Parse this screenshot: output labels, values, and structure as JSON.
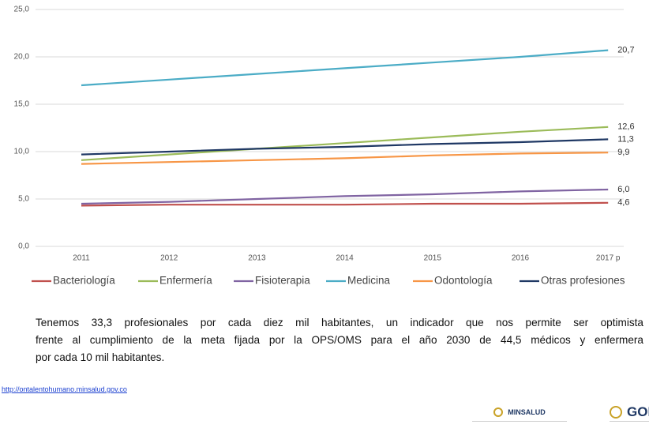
{
  "chart_data": {
    "type": "line",
    "categories": [
      "2011",
      "2012",
      "2013",
      "2014",
      "2015",
      "2016",
      "2017 p"
    ],
    "series": [
      {
        "name": "Bacteriología",
        "color": "#c0504d",
        "values": [
          4.3,
          4.4,
          4.4,
          4.4,
          4.5,
          4.5,
          4.6
        ],
        "value_labels": [
          null,
          null,
          null,
          null,
          null,
          null,
          "4,6"
        ]
      },
      {
        "name": "Enfermería",
        "color": "#9bbb59",
        "values": [
          9.1,
          9.7,
          10.3,
          10.9,
          11.5,
          12.1,
          12.6
        ],
        "value_labels": [
          null,
          null,
          null,
          null,
          null,
          null,
          "12,6"
        ]
      },
      {
        "name": "Fisioterapia",
        "color": "#8064a2",
        "values": [
          4.5,
          4.7,
          5.0,
          5.3,
          5.5,
          5.8,
          6.0
        ],
        "value_labels": [
          null,
          null,
          null,
          null,
          null,
          null,
          "6,0"
        ]
      },
      {
        "name": "Medicina",
        "color": "#4bacc6",
        "values": [
          17.0,
          17.6,
          18.2,
          18.8,
          19.4,
          20.0,
          20.7
        ],
        "value_labels": [
          null,
          null,
          null,
          null,
          null,
          null,
          "20,7"
        ]
      },
      {
        "name": "Odontología",
        "color": "#f79646",
        "values": [
          8.7,
          8.9,
          9.1,
          9.3,
          9.6,
          9.8,
          9.9
        ],
        "value_labels": [
          null,
          null,
          null,
          null,
          null,
          null,
          "9,9"
        ]
      },
      {
        "name": "Otras profesiones",
        "color": "#1f3864",
        "values": [
          9.7,
          10.0,
          10.3,
          10.5,
          10.8,
          11.0,
          11.3
        ],
        "value_labels": [
          null,
          null,
          null,
          null,
          null,
          null,
          "11,3"
        ]
      }
    ],
    "ylim": [
      0,
      25
    ],
    "yticks": [
      {
        "value": 0,
        "label": "0,0"
      },
      {
        "value": 5,
        "label": "5,0"
      },
      {
        "value": 10,
        "label": "10,0"
      },
      {
        "value": 15,
        "label": "15,0"
      },
      {
        "value": 20,
        "label": "20,0"
      },
      {
        "value": 25,
        "label": "25,0"
      }
    ],
    "grid": true,
    "legend": "bottom"
  },
  "text": {
    "lines": [
      "Tenemos 33,3 profesionales por cada diez mil habitantes, un indicador que nos permite ser optimista",
      "frente al cumplimiento de la meta fijada por la OPS/OMS para el año 2030 de 44,5 médicos y enfermera",
      "por cada 10 mil habitantes."
    ]
  },
  "footer": {
    "link": "http://ontalentohumano.minsalud.gov.co",
    "logo1": "MINSALUD",
    "logo2": "GOI"
  }
}
